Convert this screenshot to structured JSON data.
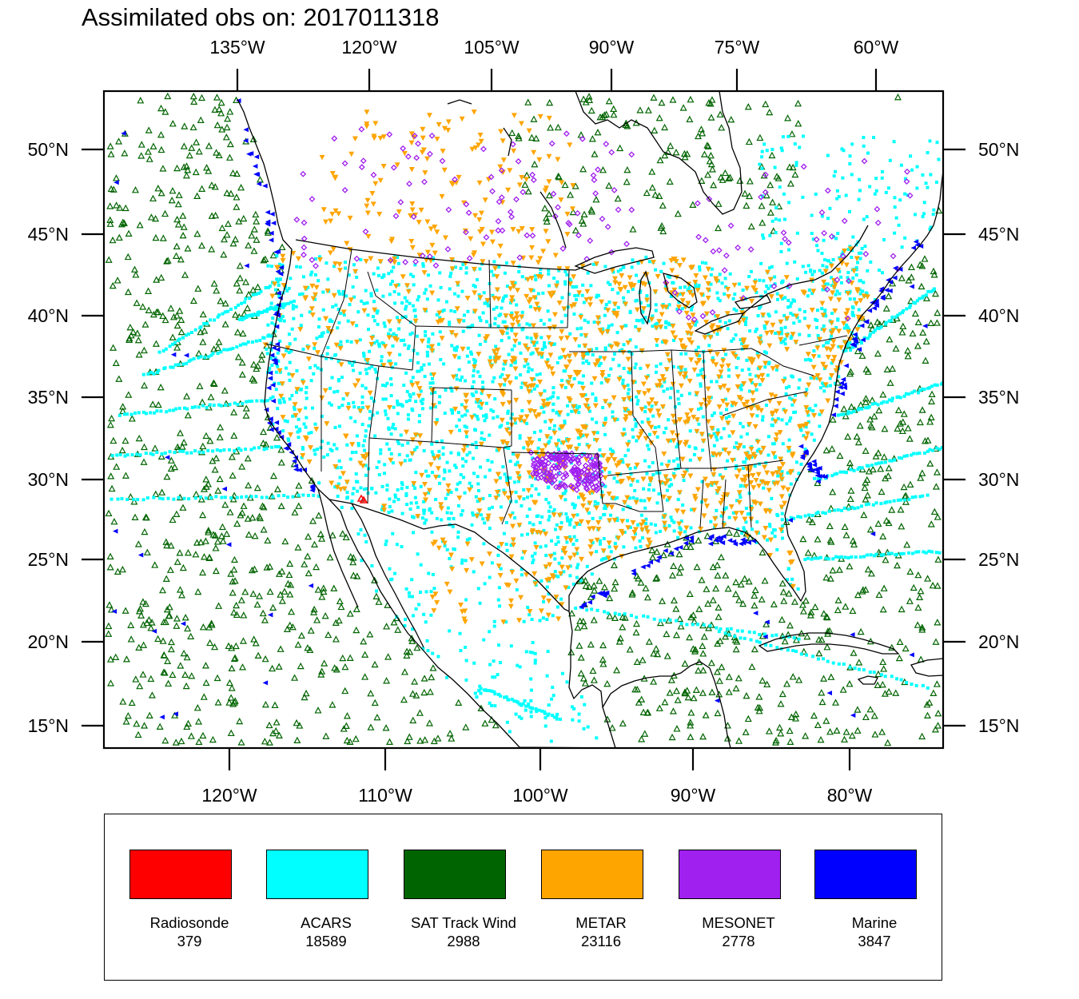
{
  "title": "Assimilated obs on: 2017011318",
  "top_axis_labels": [
    "135°W",
    "120°W",
    "105°W",
    "90°W",
    "75°W",
    "60°W"
  ],
  "bottom_axis_labels": [
    "120°W",
    "110°W",
    "100°W",
    "90°W",
    "80°W"
  ],
  "left_axis_labels": [
    "50°N",
    "45°N",
    "40°N",
    "35°N",
    "30°N",
    "25°N",
    "20°N",
    "15°N"
  ],
  "right_axis_labels": [
    "50°N",
    "45°N",
    "40°N",
    "35°N",
    "30°N",
    "25°N",
    "20°N",
    "15°N"
  ],
  "legend": [
    {
      "label": "Radiosonde",
      "count": "379",
      "color": "#ff0000"
    },
    {
      "label": "ACARS",
      "count": "18589",
      "color": "#00ffff"
    },
    {
      "label": "SAT Track Wind",
      "count": "2988",
      "color": "#006400"
    },
    {
      "label": "METAR",
      "count": "23116",
      "color": "#ffa500"
    },
    {
      "label": "MESONET",
      "count": "2778",
      "color": "#a020f0"
    },
    {
      "label": "Marine",
      "count": "3847",
      "color": "#0000ff"
    }
  ],
  "map_data": {
    "region": "Continental United States, southern Canada, Mexico and Caribbean",
    "projection": "Lambert conformal",
    "lon_range": [
      -128,
      -55
    ],
    "lat_range": [
      13,
      54
    ],
    "observation_types": [
      {
        "name": "Radiosonde",
        "marker": "triangle-up",
        "color": "#ff0000",
        "count": 379
      },
      {
        "name": "ACARS",
        "marker": "square",
        "color": "#00ffff",
        "count": 18589
      },
      {
        "name": "SAT Track Wind",
        "marker": "triangle-up-open",
        "color": "#006400",
        "count": 2988
      },
      {
        "name": "METAR",
        "marker": "triangle-down",
        "color": "#ffa500",
        "count": 23116
      },
      {
        "name": "MESONET",
        "marker": "diamond",
        "color": "#a020f0",
        "count": 2778
      },
      {
        "name": "Marine",
        "marker": "triangle-left",
        "color": "#0000ff",
        "count": 3847
      }
    ]
  }
}
